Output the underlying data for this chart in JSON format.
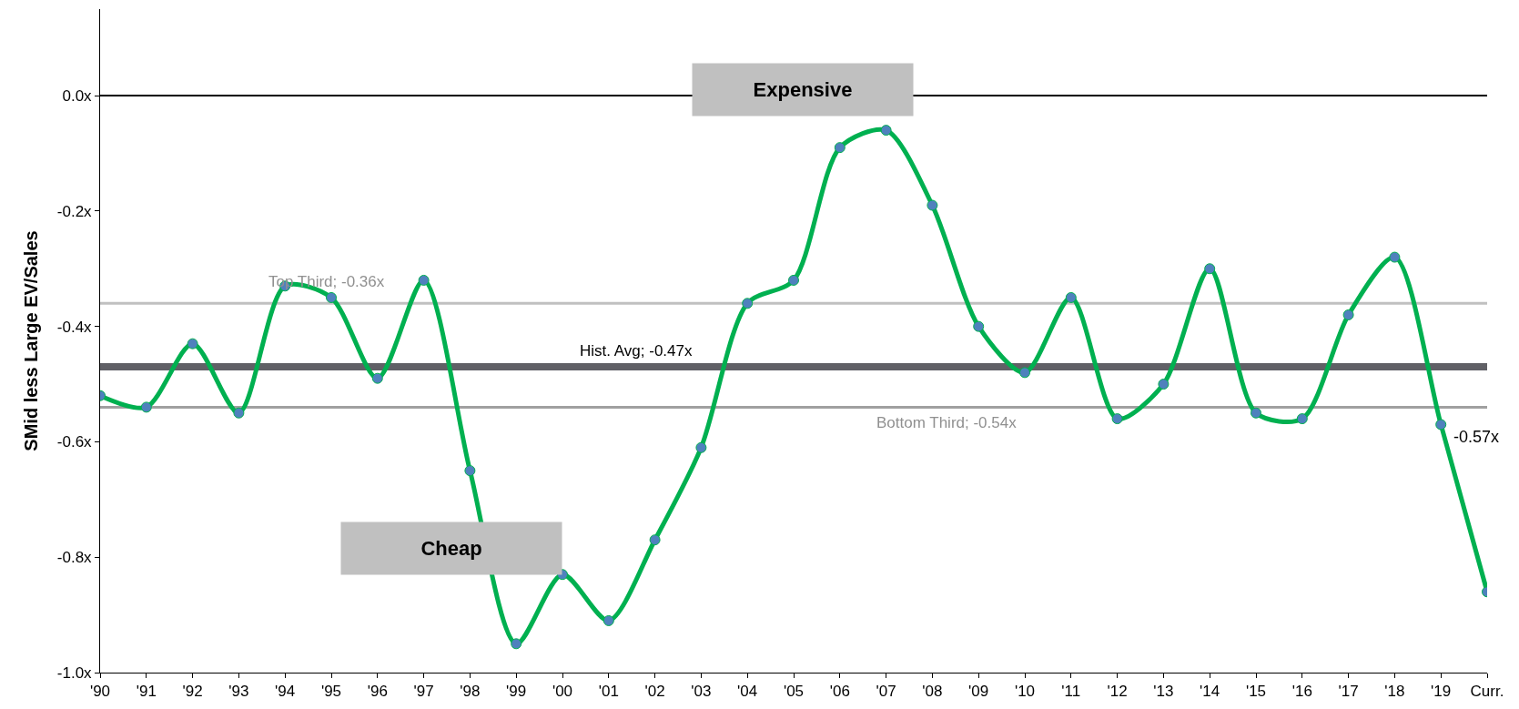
{
  "chart_data": {
    "type": "line",
    "ylabel": "SMid less Large EV/Sales",
    "categories": [
      "'90",
      "'91",
      "'92",
      "'93",
      "'94",
      "'95",
      "'96",
      "'97",
      "'98",
      "'99",
      "'00",
      "'01",
      "'02",
      "'03",
      "'04",
      "'05",
      "'06",
      "'07",
      "'08",
      "'09",
      "'10",
      "'11",
      "'12",
      "'13",
      "'14",
      "'15",
      "'16",
      "'17",
      "'18",
      "'19",
      "Curr."
    ],
    "series": [
      {
        "color": "#00b050",
        "values": [
          -0.52,
          -0.54,
          -0.43,
          -0.55,
          -0.33,
          -0.35,
          -0.49,
          -0.32,
          -0.65,
          -0.95,
          -0.83,
          -0.91,
          -0.77,
          -0.61,
          -0.36,
          -0.32,
          -0.09,
          -0.06,
          -0.19,
          -0.4,
          -0.48,
          -0.35,
          -0.56,
          -0.5,
          -0.3,
          -0.55,
          -0.56,
          -0.38,
          -0.28,
          -0.57,
          -0.86
        ]
      }
    ],
    "marker": "circle",
    "ylim": [
      -1.0,
      0.15
    ],
    "yticks": [
      {
        "value": 0.0,
        "label": "0.0x"
      },
      {
        "value": -0.2,
        "label": "-0.2x"
      },
      {
        "value": -0.4,
        "label": "-0.4x"
      },
      {
        "value": -0.6,
        "label": "-0.6x"
      },
      {
        "value": -0.8,
        "label": "-0.8x"
      },
      {
        "value": -1.0,
        "label": "-1.0x"
      }
    ],
    "ref_lines": [
      {
        "axis": "y",
        "value": 0.0,
        "color": "#000000"
      },
      {
        "axis": "y",
        "value": -0.36,
        "label": "Top Third; -0.36x",
        "color": "#c0c0c0"
      },
      {
        "axis": "y",
        "value": -0.47,
        "label": "Hist. Avg; -0.47x",
        "color": "#606066"
      },
      {
        "axis": "y",
        "value": -0.54,
        "label": "Bottom Third; -0.54x",
        "color": "#a0a0a0"
      }
    ],
    "annotations": [
      "Expensive",
      "Cheap",
      {
        "text": "-0.57x",
        "x": "'19",
        "y": -0.57
      }
    ],
    "grid": false
  }
}
